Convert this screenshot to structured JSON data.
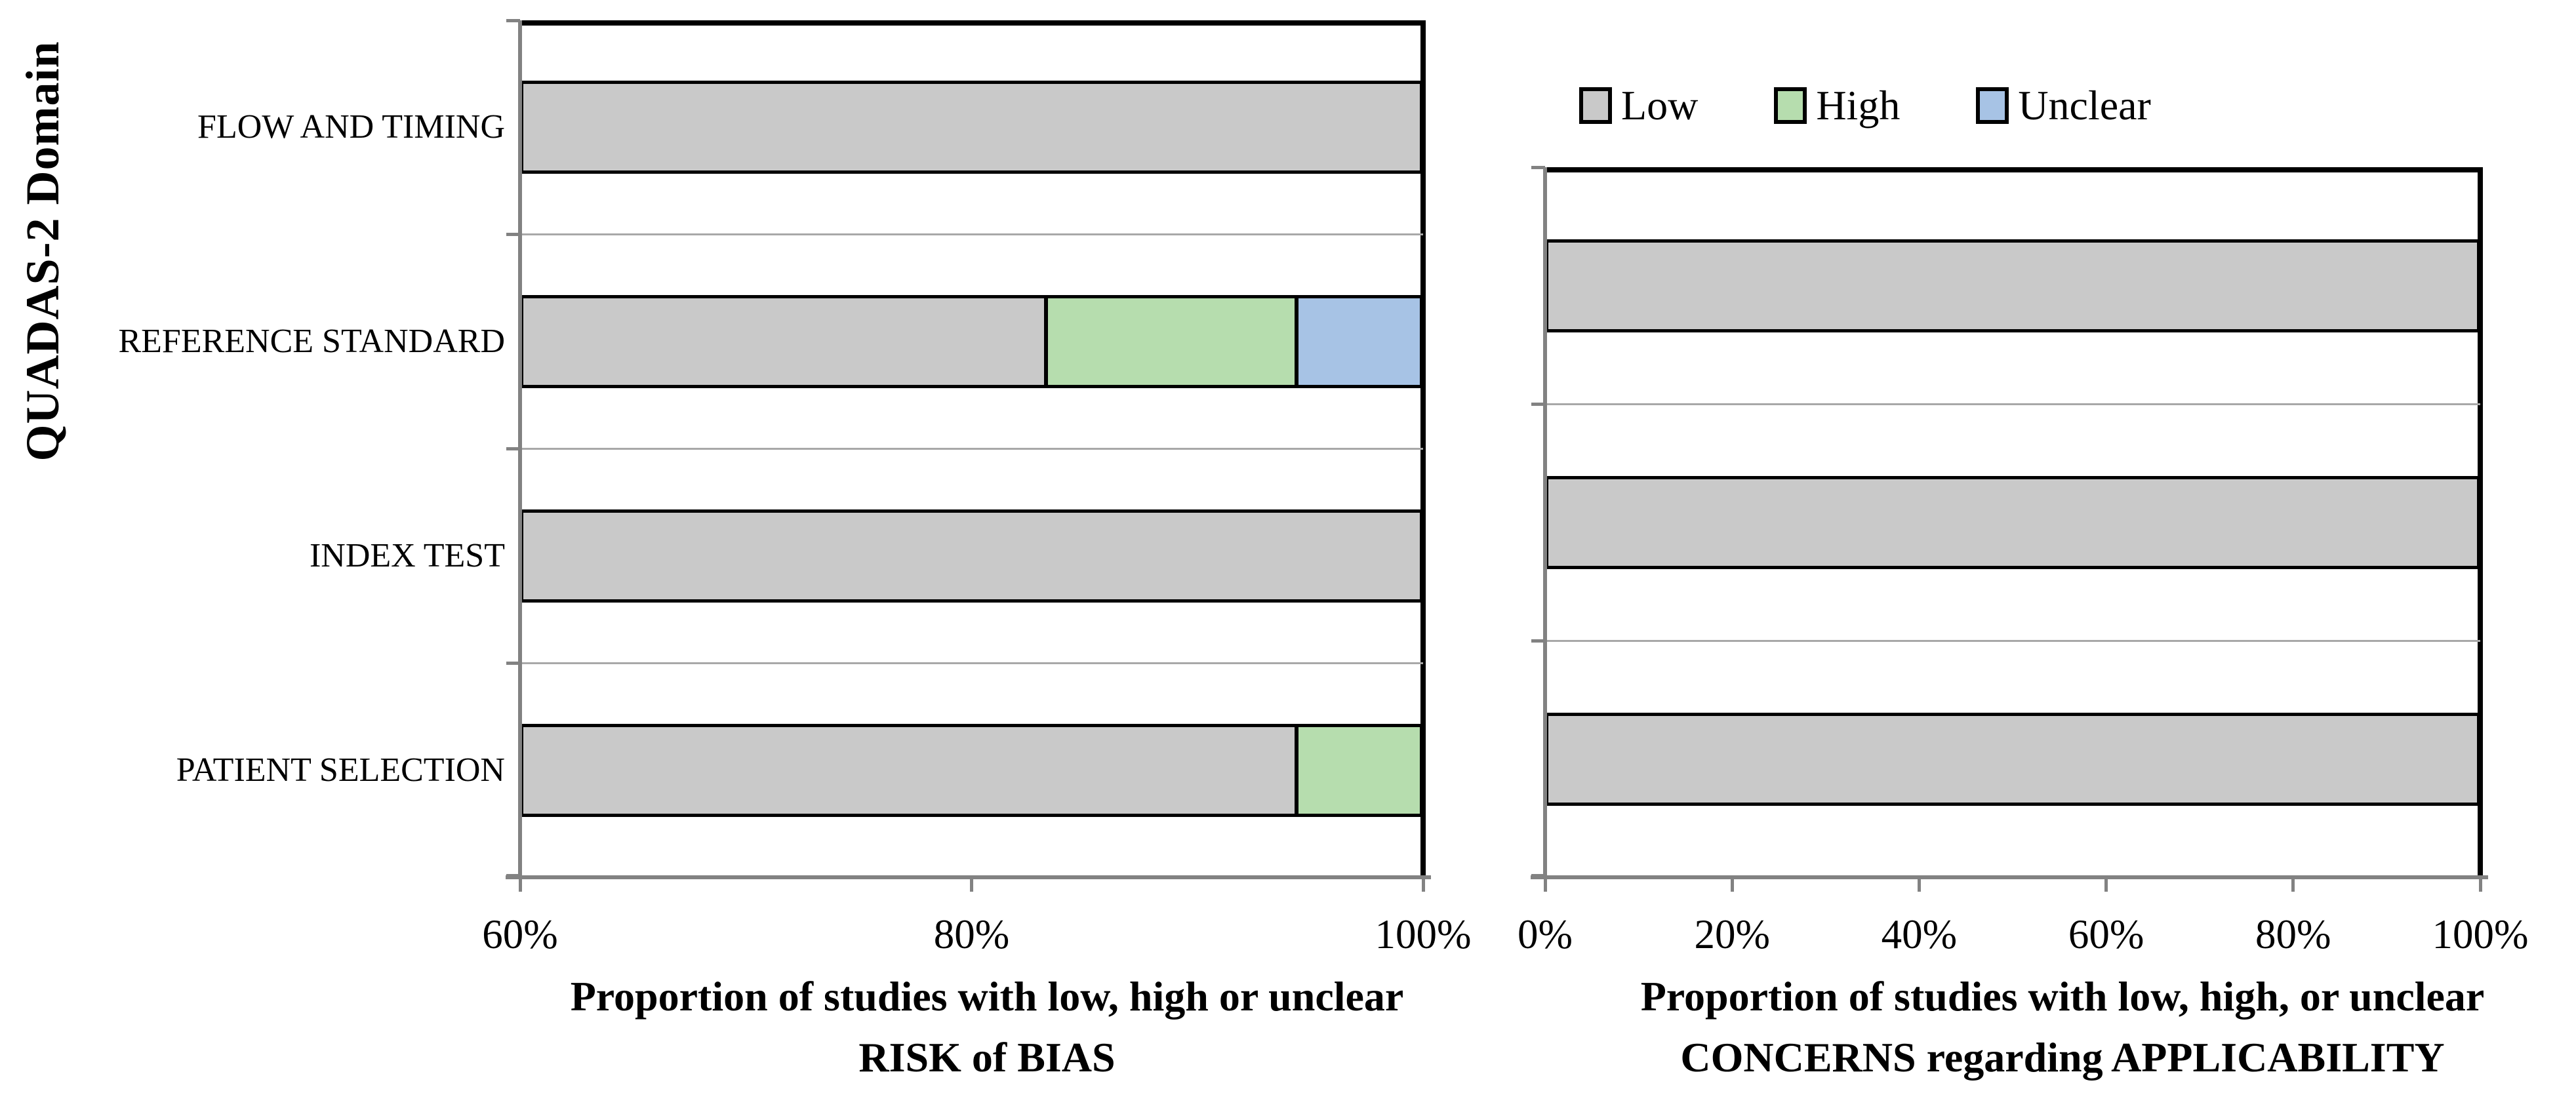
{
  "figure": {
    "y_axis_title": "QUADAS-2 Domain"
  },
  "legend": {
    "items": [
      {
        "label": "Low",
        "color": "#c9c9c9"
      },
      {
        "label": "High",
        "color": "#b6ddae"
      },
      {
        "label": "Unclear",
        "color": "#a7c3e5"
      }
    ]
  },
  "risk_chart": {
    "categories": [
      "FLOW AND TIMING",
      "REFERENCE STANDARD",
      "INDEX TEST",
      "PATIENT SELECTION"
    ],
    "x_tick_labels": [
      "60%",
      "80%",
      "100%"
    ],
    "title_line1": "Proportion of studies with low, high or unclear",
    "title_line2": "RISK of BIAS"
  },
  "applicability_chart": {
    "x_tick_labels": [
      "0%",
      "20%",
      "40%",
      "60%",
      "80%",
      "100%"
    ],
    "title_line1": "Proportion of studies with low, high, or unclear",
    "title_line2": "CONCERNS regarding APPLICABILITY"
  },
  "chart_data": [
    {
      "type": "bar",
      "orientation": "horizontal",
      "stacked": true,
      "title": "Proportion of studies with low, high or unclear RISK of BIAS",
      "ylabel": "QUADAS-2 Domain",
      "categories_top_to_bottom": [
        "FLOW AND TIMING",
        "REFERENCE STANDARD",
        "INDEX TEST",
        "PATIENT SELECTION"
      ],
      "series": [
        {
          "name": "Low",
          "color": "#c9c9c9",
          "values": [
            100,
            83.3,
            100,
            94.4
          ]
        },
        {
          "name": "High",
          "color": "#b6ddae",
          "values": [
            0,
            11.1,
            0,
            5.6
          ]
        },
        {
          "name": "Unclear",
          "color": "#a7c3e5",
          "values": [
            0,
            5.6,
            0,
            0
          ]
        }
      ],
      "xlim": [
        60,
        100
      ],
      "x_ticks_percent": [
        60,
        80,
        100
      ],
      "grid": "category-boundaries",
      "legend_position": "none"
    },
    {
      "type": "bar",
      "orientation": "horizontal",
      "stacked": true,
      "title": "Proportion of studies with low, high, or unclear CONCERNS regarding APPLICABILITY",
      "categories_top_to_bottom": [
        "",
        "",
        ""
      ],
      "series": [
        {
          "name": "Low",
          "color": "#c9c9c9",
          "values": [
            100,
            100,
            100
          ]
        },
        {
          "name": "High",
          "color": "#b6ddae",
          "values": [
            0,
            0,
            0
          ]
        },
        {
          "name": "Unclear",
          "color": "#a7c3e5",
          "values": [
            0,
            0,
            0
          ]
        }
      ],
      "xlim": [
        0,
        100
      ],
      "x_ticks_percent": [
        0,
        20,
        40,
        60,
        80,
        100
      ],
      "grid": "category-boundaries",
      "legend_position": "top"
    }
  ]
}
